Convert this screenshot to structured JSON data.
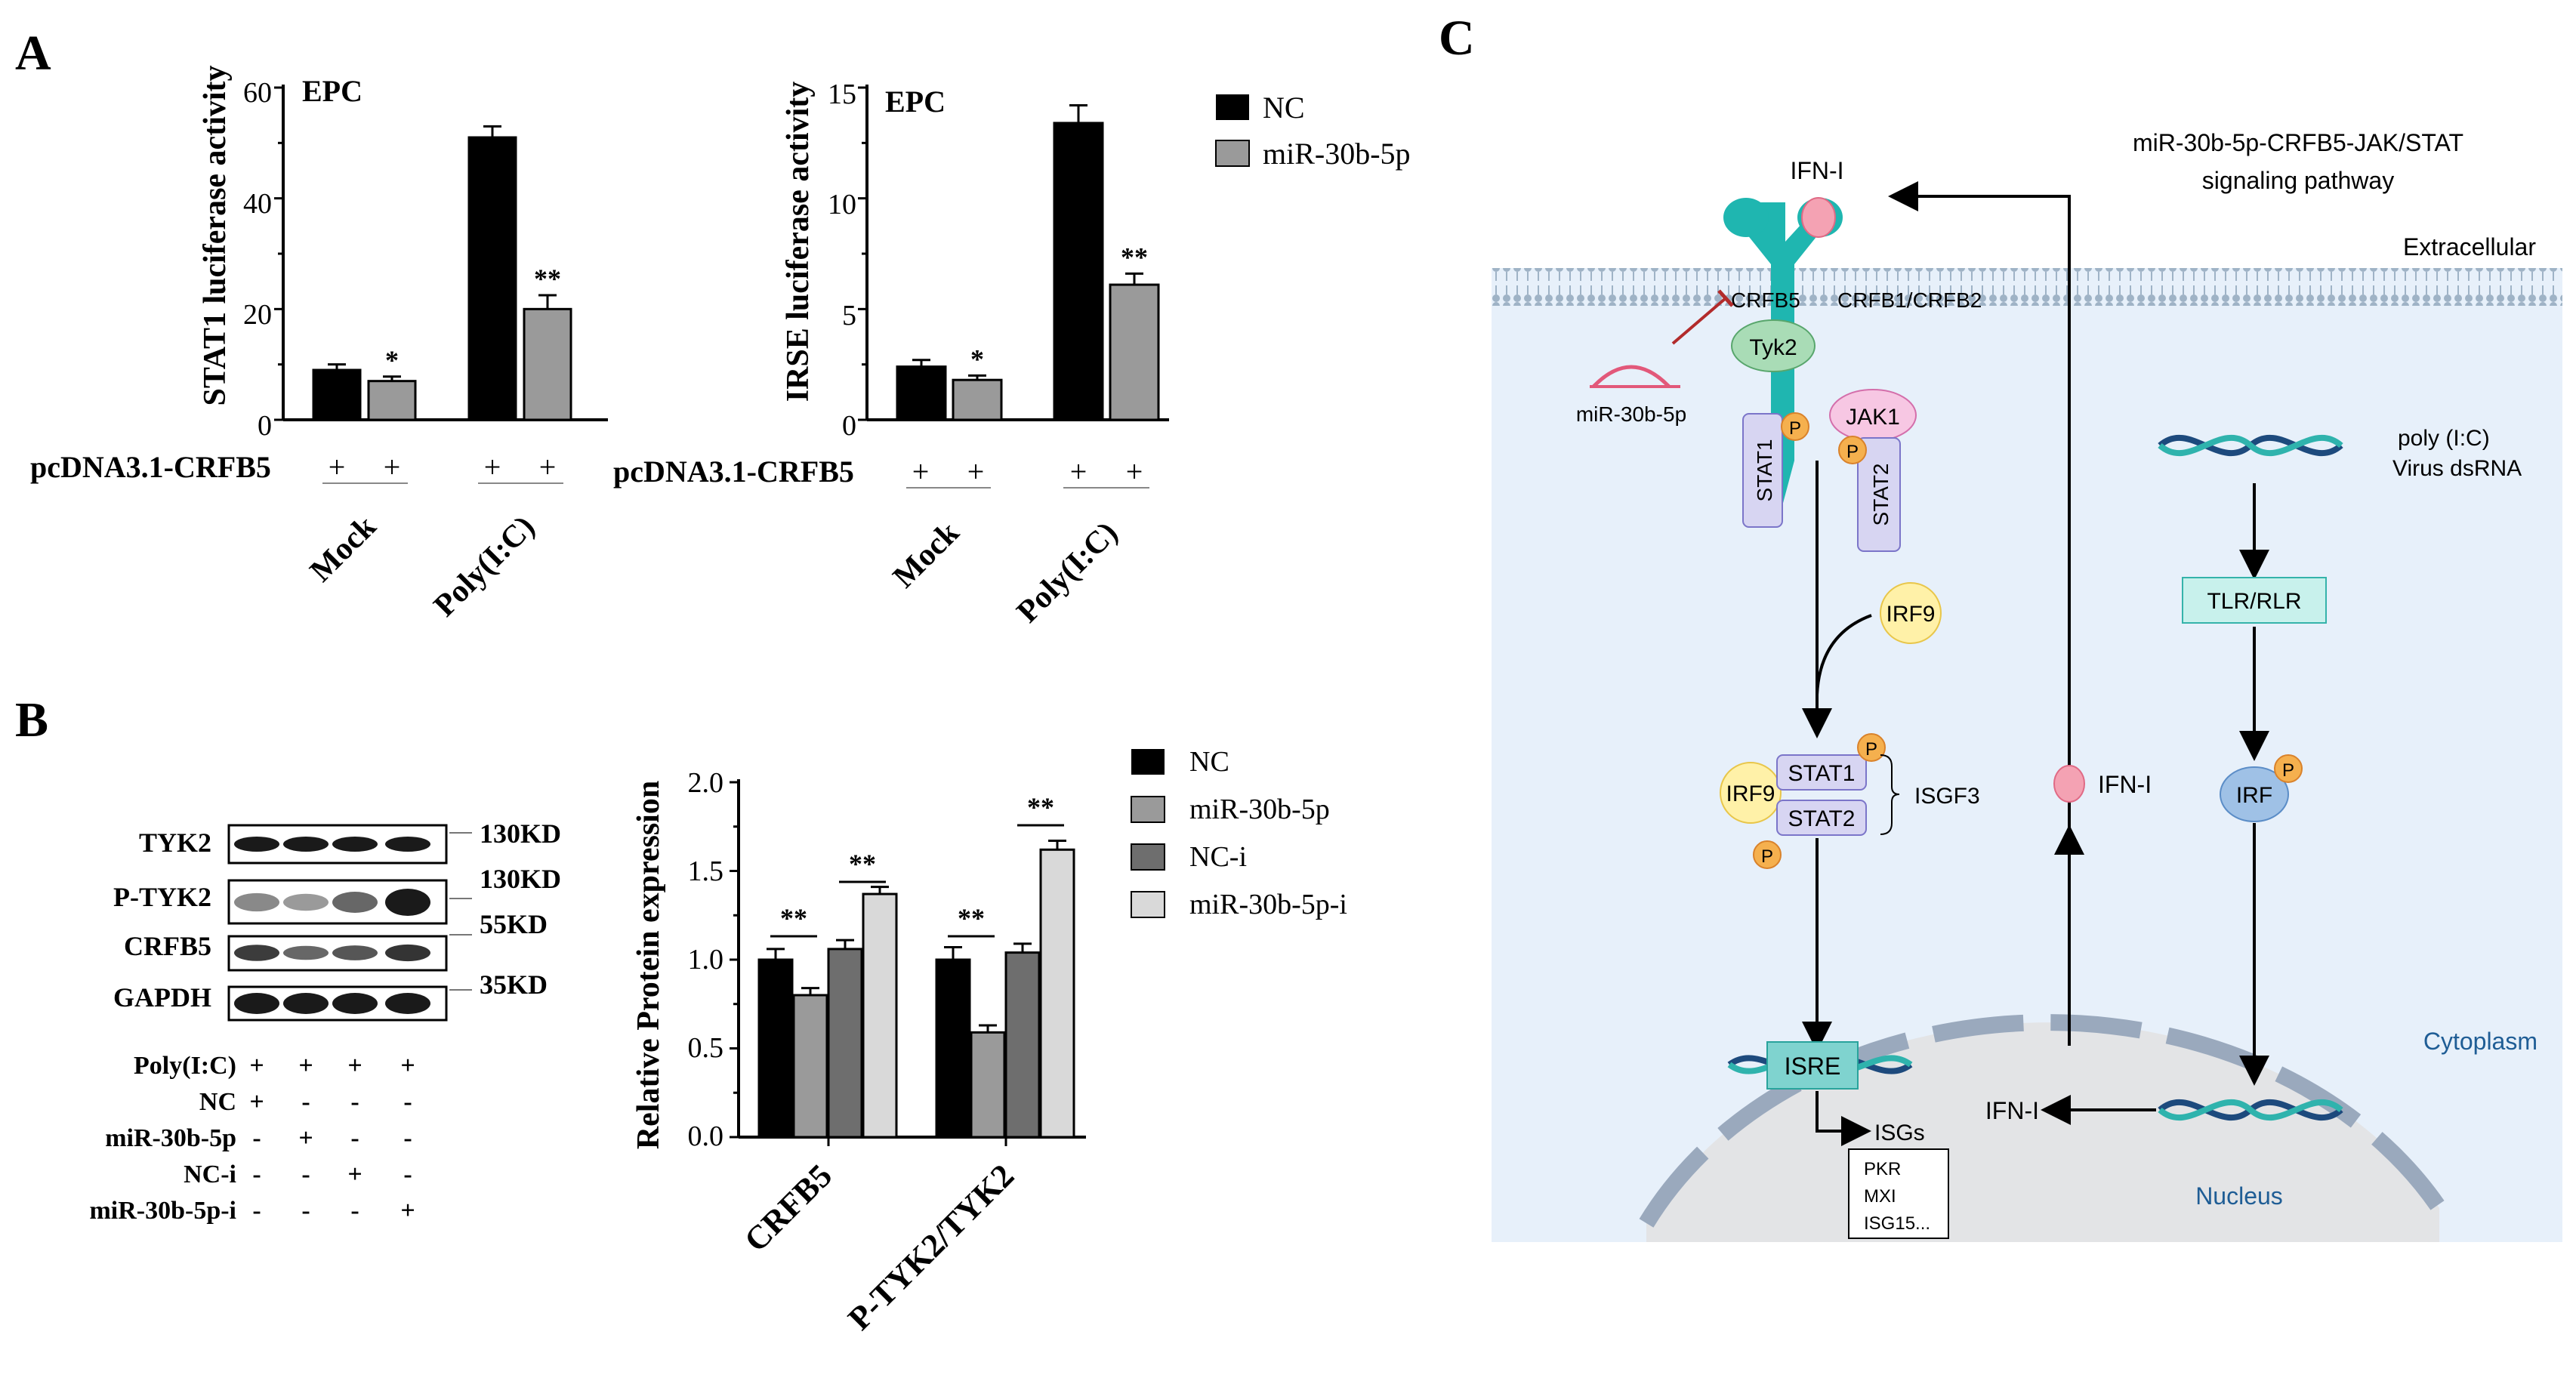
{
  "panel_labels": {
    "a": "A",
    "b": "B",
    "c": "C"
  },
  "colors": {
    "nc": "#000000",
    "mir": "#9a9a9a",
    "nci": "#6e6e6e",
    "miri": "#d9d9d9",
    "pathway_bg": "#e7f0fa",
    "receptor": "#1fb6b0",
    "nucleus_fill": "#e3e4e6",
    "membrane": "#9fb3c6"
  },
  "panel_a": {
    "legend": [
      "NC",
      "miR-30b-5p"
    ],
    "row_label": "pcDNA3.1-CRFB5",
    "plus": "+",
    "charts": [
      {
        "inset": "EPC",
        "ylabel": "STAT1 luciferase activity",
        "yticks": [
          "0",
          "20",
          "40",
          "60"
        ],
        "groups": [
          "Mock",
          "Poly(I:C)"
        ],
        "sig": [
          "*",
          "**"
        ]
      },
      {
        "inset": "EPC",
        "ylabel": "IRSE luciferase activity",
        "yticks": [
          "0",
          "5",
          "10",
          "15"
        ],
        "groups": [
          "Mock",
          "Poly(I:C)"
        ],
        "sig": [
          "*",
          "**"
        ]
      }
    ]
  },
  "panel_b": {
    "blot_labels": [
      "TYK2",
      "P-TYK2",
      "CRFB5",
      "GAPDH"
    ],
    "size_labels": [
      "130KD",
      "130KD",
      "55KD",
      "35KD"
    ],
    "treat_labels": [
      "Poly(I:C)",
      "NC",
      "miR-30b-5p",
      "NC-i",
      "miR-30b-5p-i"
    ],
    "treat_rows": [
      [
        "+",
        "+",
        "+",
        "+"
      ],
      [
        "+",
        "-",
        "-",
        "-"
      ],
      [
        "-",
        "+",
        "-",
        "-"
      ],
      [
        "-",
        "-",
        "+",
        "-"
      ],
      [
        "-",
        "-",
        "-",
        "+"
      ]
    ],
    "legend": [
      "NC",
      "miR-30b-5p",
      "NC-i",
      "miR-30b-5p-i"
    ],
    "ylabel": "Relative Protein expression",
    "yticks": [
      "0.0",
      "0.5",
      "1.0",
      "1.5",
      "2.0"
    ],
    "groups": [
      "CRFB5",
      "P-TYK2/TYK2"
    ],
    "sig": [
      "**",
      "**",
      "**",
      "**"
    ]
  },
  "panel_c": {
    "title_line1": "miR-30b-5p-CRFB5-JAK/STAT",
    "title_line2": "signaling pathway",
    "extracellular": "Extracellular",
    "cytoplasm": "Cytoplasm",
    "nucleus": "Nucleus",
    "ifn_top": "IFN-I",
    "ifn_mid": "IFN-I",
    "ifn_nuc": "IFN-I",
    "crfb5": "CRFB5",
    "crfb1": "CRFB1/CRFB2",
    "tyk2": "Tyk2",
    "jak1": "JAK1",
    "stat1": "STAT1",
    "stat2": "STAT2",
    "p": "P",
    "mirna": "miR-30b-5p",
    "irf9": "IRF9",
    "isgf3": "ISGF3",
    "isre": "ISRE",
    "isgs": "ISGs",
    "isg_list": [
      "PKR",
      "MXI",
      "ISG15..."
    ],
    "polyic1": "poly (I:C)",
    "polyic2": "Virus dsRNA",
    "tlr": "TLR/RLR",
    "irf": "IRF"
  },
  "chart_data": [
    {
      "type": "bar",
      "title": "",
      "inset": "EPC",
      "xlabel": "",
      "ylabel": "STAT1 luciferase activity",
      "ylim": [
        0,
        60
      ],
      "categories": [
        "Mock",
        "Poly(I:C)"
      ],
      "series": [
        {
          "name": "NC",
          "values": [
            9,
            51
          ],
          "errors": [
            1,
            2
          ]
        },
        {
          "name": "miR-30b-5p",
          "values": [
            7,
            20
          ],
          "errors": [
            0.8,
            2.5
          ]
        }
      ],
      "annotations": [
        "*",
        "**"
      ],
      "legend": "top-right"
    },
    {
      "type": "bar",
      "title": "",
      "inset": "EPC",
      "xlabel": "",
      "ylabel": "IRSE luciferase activity",
      "ylim": [
        0,
        15
      ],
      "categories": [
        "Mock",
        "Poly(I:C)"
      ],
      "series": [
        {
          "name": "NC",
          "values": [
            2.4,
            13.4
          ],
          "errors": [
            0.3,
            0.8
          ]
        },
        {
          "name": "miR-30b-5p",
          "values": [
            1.8,
            6.1
          ],
          "errors": [
            0.2,
            0.5
          ]
        }
      ],
      "annotations": [
        "*",
        "**"
      ]
    },
    {
      "type": "bar",
      "title": "",
      "xlabel": "",
      "ylabel": "Relative Protein expression",
      "ylim": [
        0,
        2.0
      ],
      "categories": [
        "CRFB5",
        "P-TYK2/TYK2"
      ],
      "series": [
        {
          "name": "NC",
          "values": [
            1.0,
            1.0
          ],
          "errors": [
            0.06,
            0.07
          ]
        },
        {
          "name": "miR-30b-5p",
          "values": [
            0.8,
            0.59
          ],
          "errors": [
            0.04,
            0.04
          ]
        },
        {
          "name": "NC-i",
          "values": [
            1.06,
            1.04
          ],
          "errors": [
            0.05,
            0.05
          ]
        },
        {
          "name": "miR-30b-5p-i",
          "values": [
            1.37,
            1.62
          ],
          "errors": [
            0.04,
            0.05
          ]
        }
      ],
      "annotations": [
        "**",
        "**",
        "**",
        "**"
      ],
      "legend": "top-right"
    }
  ]
}
